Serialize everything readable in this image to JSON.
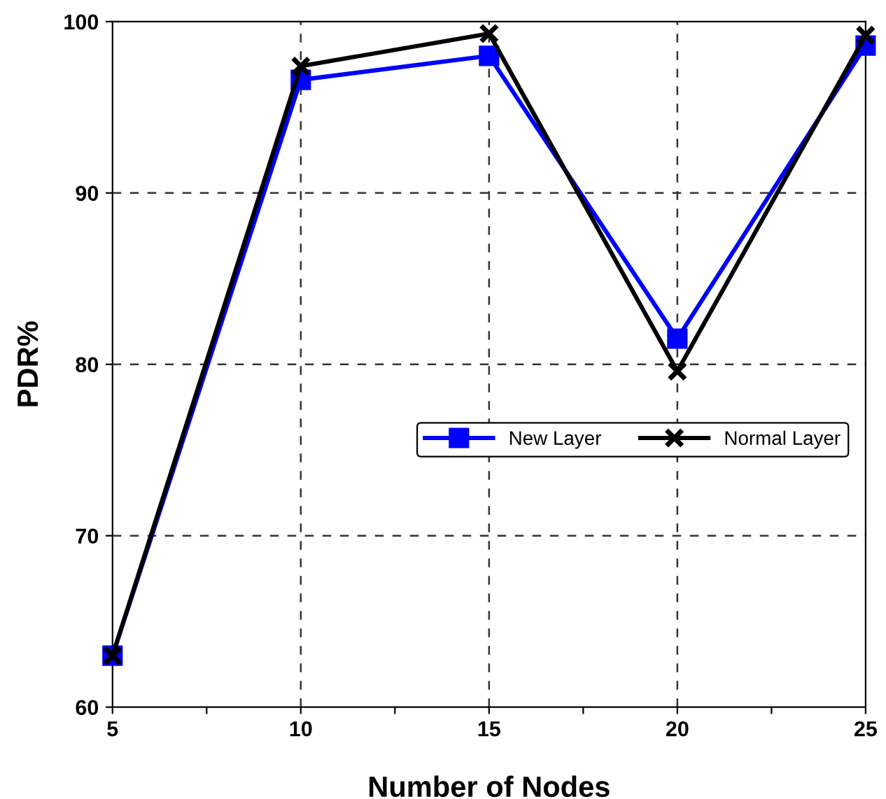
{
  "chart_data": {
    "type": "line",
    "xlabel": "Number of Nodes",
    "ylabel": "PDR%",
    "x": [
      5,
      10,
      15,
      20,
      25
    ],
    "series": [
      {
        "name": "New Layer",
        "color": "#0000ff",
        "marker": "square",
        "values": [
          63,
          96.6,
          98.0,
          81.5,
          98.6
        ]
      },
      {
        "name": "Normal Layer",
        "color": "#000000",
        "marker": "cross",
        "values": [
          63,
          97.4,
          99.3,
          79.6,
          99.2
        ]
      }
    ],
    "xlim": [
      5,
      25
    ],
    "ylim": [
      60,
      100
    ],
    "xticks": [
      5,
      {
        "value": 7.5,
        "label": null
      },
      10,
      {
        "value": 12.5,
        "label": null
      },
      15,
      {
        "value": 17.5,
        "label": null
      },
      20,
      {
        "value": 22.5,
        "label": null
      },
      25
    ],
    "yticks": [
      60,
      70,
      80,
      90,
      100
    ],
    "grid": true,
    "legend": "right",
    "line_style": "solid"
  }
}
